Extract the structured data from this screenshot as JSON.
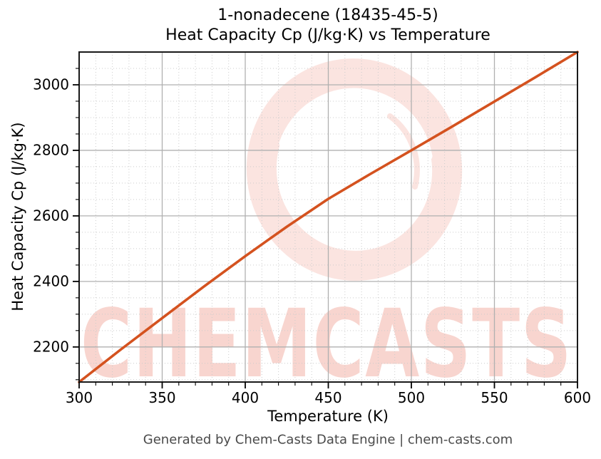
{
  "figure": {
    "title_line1": "1-nonadecene (18435-45-5)",
    "title_line2": "Heat Capacity Cp (J/kg·K) vs Temperature"
  },
  "footer": {
    "text": "Generated by Chem-Casts Data Engine | chem-casts.com"
  },
  "watermark": {
    "text": "CHEMCASTS",
    "color": "#e8604a"
  },
  "chart_data": {
    "type": "line",
    "title": "1-nonadecene (18435-45-5)",
    "subtitle": "Heat Capacity Cp (J/kg·K) vs Temperature",
    "xlabel": "Temperature (K)",
    "ylabel": "Heat Capacity Cp (J/kg·K)",
    "xlim": [
      300,
      600
    ],
    "ylim": [
      2093,
      3100
    ],
    "x_major_ticks": [
      300,
      350,
      400,
      450,
      500,
      550,
      600
    ],
    "x_minor_step": 10,
    "y_major_ticks": [
      2200,
      2400,
      2600,
      2800,
      3000
    ],
    "y_minor_step": 50,
    "grid": {
      "major": "solid",
      "minor": "dotted"
    },
    "legend": "none",
    "series": [
      {
        "name": "Heat Capacity Cp",
        "color": "#d4521f",
        "x": [
          300,
          325,
          350,
          375,
          400,
          425,
          450,
          475,
          500,
          525,
          550,
          575,
          600
        ],
        "values": [
          2093,
          2192,
          2288,
          2384,
          2477,
          2567,
          2652,
          2727,
          2800,
          2874,
          2949,
          3024,
          3100
        ]
      }
    ]
  }
}
